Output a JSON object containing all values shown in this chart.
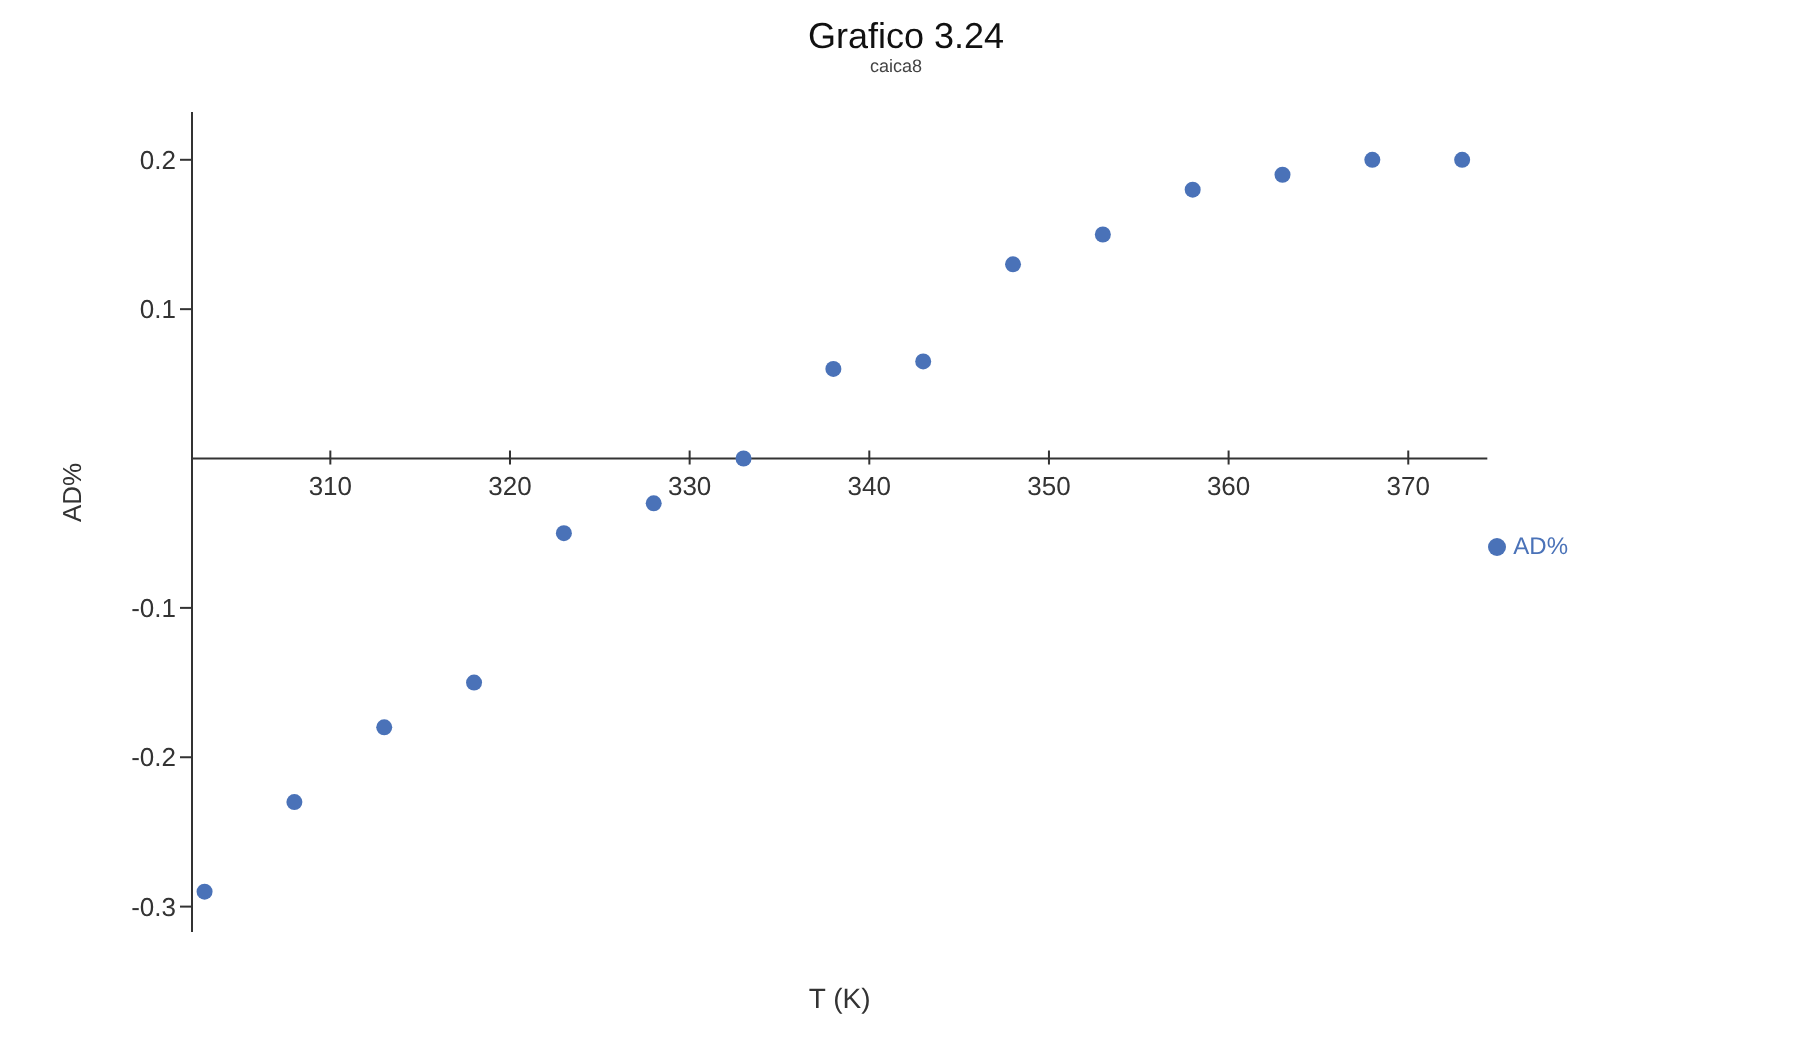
{
  "chart_data": {
    "type": "scatter",
    "title": "Grafico 3.24",
    "subtitle": "caica8",
    "xlabel": "T (K)",
    "ylabel": "AD%",
    "x": [
      303,
      308,
      313,
      318,
      323,
      328,
      333,
      338,
      343,
      348,
      353,
      358,
      363,
      368,
      373
    ],
    "series": [
      {
        "name": "AD%",
        "color": "#4a72b8",
        "values": [
          -0.29,
          -0.23,
          -0.18,
          -0.15,
          -0.05,
          -0.03,
          0.0,
          0.06,
          0.065,
          0.13,
          0.15,
          0.18,
          0.19,
          0.2,
          0.2
        ]
      }
    ],
    "xlim": [
      302.3,
      374.4
    ],
    "xticks": [
      310,
      320,
      330,
      340,
      350,
      360,
      370
    ],
    "ylim": [
      -0.317,
      0.232
    ],
    "yticks": [
      -0.3,
      -0.2,
      -0.1,
      0.1,
      0.2
    ],
    "grid": false,
    "legend": "right",
    "marker": "circle"
  }
}
